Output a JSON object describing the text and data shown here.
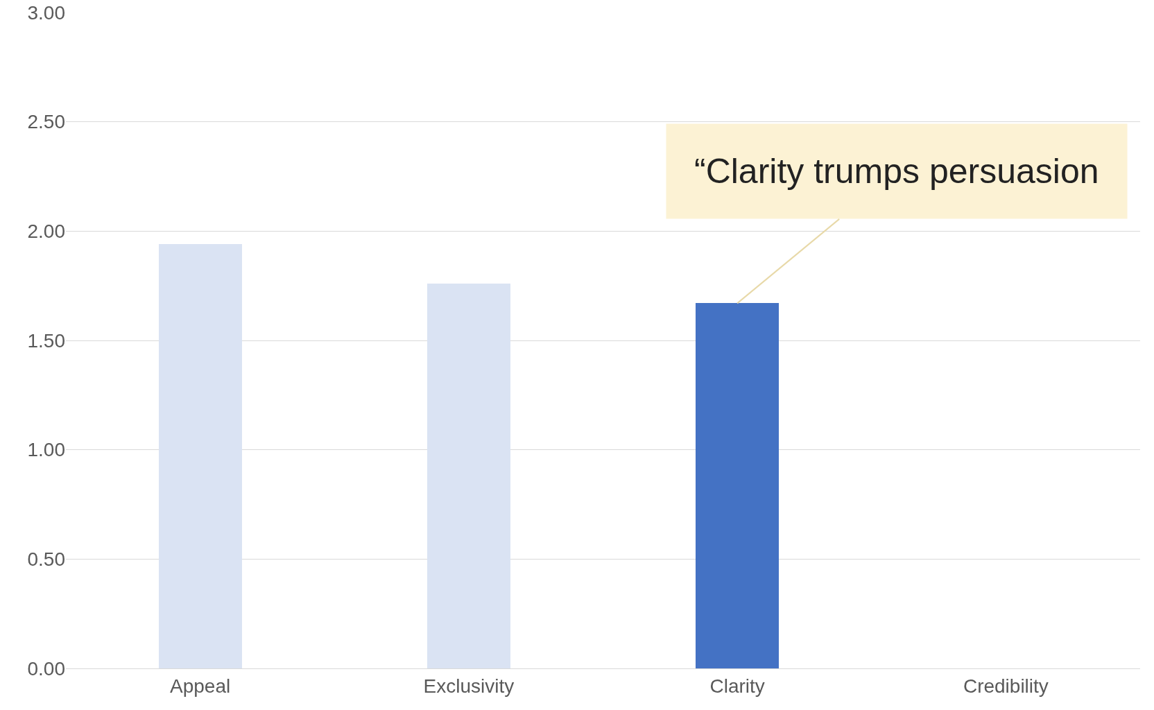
{
  "chart_data": {
    "type": "bar",
    "categories": [
      "Appeal",
      "Exclusivity",
      "Clarity",
      "Credibility"
    ],
    "values": [
      1.94,
      1.76,
      1.67,
      null
    ],
    "colors": [
      "#dae3f3",
      "#dae3f3",
      "#4472c4",
      "#dae3f3"
    ],
    "ylim": [
      0,
      3
    ],
    "yticks": [
      {
        "value": 0,
        "label": "0.00"
      },
      {
        "value": 0.5,
        "label": "0.50"
      },
      {
        "value": 1,
        "label": "1.00"
      },
      {
        "value": 1.5,
        "label": "1.50"
      },
      {
        "value": 2,
        "label": "2.00"
      },
      {
        "value": 2.5,
        "label": "2.50"
      },
      {
        "value": 3,
        "label": "3.00"
      }
    ],
    "grid": "y",
    "annotations": [
      {
        "text": "“Clarity trumps persuasion",
        "x": "Clarity",
        "y": 1.67
      }
    ]
  }
}
